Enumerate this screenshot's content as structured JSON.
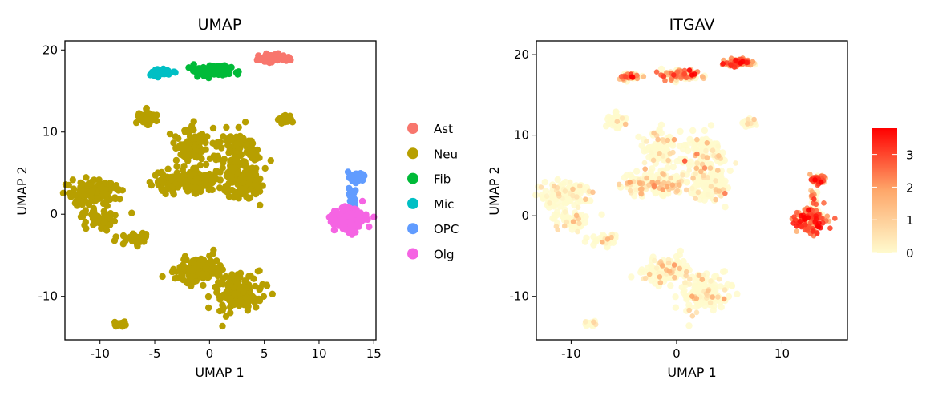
{
  "chart_data": [
    {
      "type": "scatter",
      "title": "UMAP",
      "xlabel": "UMAP 1",
      "ylabel": "UMAP 2",
      "xlim": [
        -13.2,
        15.2
      ],
      "ylim": [
        -15.3,
        21.1
      ],
      "xticks": [
        -10,
        -5,
        0,
        5,
        10,
        15
      ],
      "xtick_labels": [
        "-10",
        "-5",
        "0",
        "5",
        "10",
        "15"
      ],
      "yticks": [
        20,
        10,
        0,
        -10
      ],
      "ytick_labels": [
        "20",
        "10",
        "0",
        "-10"
      ],
      "legend_position": "right",
      "legend": [
        {
          "label": "Ast",
          "color": "#F8766D"
        },
        {
          "label": "Neu",
          "color": "#B79F00"
        },
        {
          "label": "Fib",
          "color": "#00BA38"
        },
        {
          "label": "Mic",
          "color": "#00BFC4"
        },
        {
          "label": "OPC",
          "color": "#619CFF"
        },
        {
          "label": "Olg",
          "color": "#F564E3"
        }
      ],
      "clusters": [
        {
          "type": "Neu",
          "x": -5.5,
          "y": 11.7,
          "sx": 0.6,
          "sy": 0.6,
          "n": 60,
          "expr": 0.2
        },
        {
          "type": "Neu",
          "x": 7.0,
          "y": 11.5,
          "sx": 0.4,
          "sy": 0.3,
          "n": 25,
          "expr": 0.3
        },
        {
          "type": "Neu",
          "x": -1.6,
          "y": 8.3,
          "sx": 1.1,
          "sy": 1.5,
          "n": 90,
          "expr": 0.4
        },
        {
          "type": "Neu",
          "x": 2.4,
          "y": 7.2,
          "sx": 1.3,
          "sy": 2.3,
          "n": 120,
          "expr": 0.5
        },
        {
          "type": "Neu",
          "x": -2.3,
          "y": 4.0,
          "sx": 2.3,
          "sy": 0.9,
          "n": 150,
          "expr": 0.7
        },
        {
          "type": "Neu",
          "x": 3.2,
          "y": 3.8,
          "sx": 1.4,
          "sy": 1.3,
          "n": 90,
          "expr": 0.5
        },
        {
          "type": "Neu",
          "x": -10.6,
          "y": 2.6,
          "sx": 1.5,
          "sy": 1.1,
          "n": 130,
          "expr": 0.3
        },
        {
          "type": "Neu",
          "x": -10.0,
          "y": -0.6,
          "sx": 1.1,
          "sy": 0.8,
          "n": 60,
          "expr": 0.3
        },
        {
          "type": "Neu",
          "x": -7.0,
          "y": -3.0,
          "sx": 1.0,
          "sy": 0.6,
          "n": 35,
          "expr": 0.3
        },
        {
          "type": "Neu",
          "x": -8.2,
          "y": -13.3,
          "sx": 0.4,
          "sy": 0.3,
          "n": 20,
          "expr": 0.1
        },
        {
          "type": "Neu",
          "x": -1.0,
          "y": -6.8,
          "sx": 1.5,
          "sy": 1.0,
          "n": 120,
          "expr": 0.5
        },
        {
          "type": "Neu",
          "x": 2.6,
          "y": -9.8,
          "sx": 1.6,
          "sy": 1.7,
          "n": 160,
          "expr": 0.4
        },
        {
          "type": "Ast",
          "x": 5.8,
          "y": 19.0,
          "sx": 1.0,
          "sy": 0.3,
          "n": 90,
          "expr": 2.3
        },
        {
          "type": "Fib",
          "x": 0.3,
          "y": 17.5,
          "sx": 1.1,
          "sy": 0.45,
          "n": 110,
          "expr": 1.8
        },
        {
          "type": "Mic",
          "x": -4.3,
          "y": 17.3,
          "sx": 0.9,
          "sy": 0.3,
          "n": 50,
          "expr": 1.9
        },
        {
          "type": "OPC",
          "x": 13.4,
          "y": 4.5,
          "sx": 0.5,
          "sy": 0.35,
          "n": 50,
          "expr": 2.6
        },
        {
          "type": "OPC",
          "x": 13.1,
          "y": 2.0,
          "sx": 0.2,
          "sy": 1.0,
          "n": 20,
          "expr": 1.8
        },
        {
          "type": "Olg",
          "x": 12.6,
          "y": -0.6,
          "sx": 0.9,
          "sy": 1.0,
          "n": 130,
          "expr": 2.6
        }
      ]
    },
    {
      "type": "scatter",
      "title": "ITGAV",
      "xlabel": "UMAP 1",
      "ylabel": "UMAP 2",
      "xlim": [
        -13.3,
        16.2
      ],
      "ylim": [
        -15.4,
        21.7
      ],
      "xticks": [
        -10,
        0,
        10
      ],
      "xtick_labels": [
        "-10",
        "0",
        "10"
      ],
      "yticks": [
        20,
        10,
        0,
        -10
      ],
      "ytick_labels": [
        "20",
        "10",
        "0",
        "-10"
      ],
      "colorbar": {
        "min": 0,
        "max": 3.8,
        "ticks": [
          0,
          1,
          2,
          3
        ],
        "tick_labels": [
          "0",
          "1",
          "2",
          "3"
        ],
        "low_color": "#FFFACD",
        "mid_color": "#FEA76A",
        "high_color": "#FF0000"
      },
      "note": "same cells as UMAP panel, colored by ITGAV expression"
    }
  ]
}
